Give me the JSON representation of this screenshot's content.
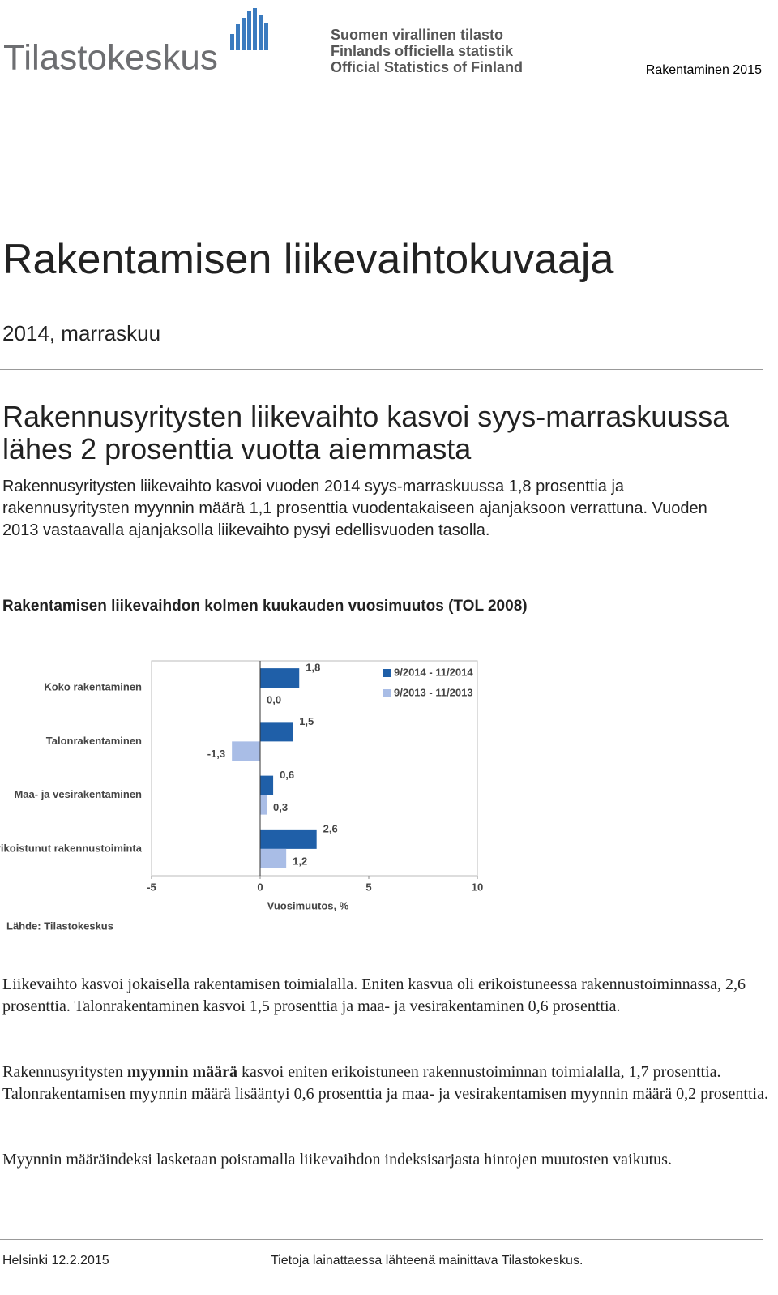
{
  "header": {
    "logo_text": "Tilastokeskus",
    "tagline": [
      "Suomen virallinen tilasto",
      "Finlands officiella statistik",
      "Official Statistics of Finland"
    ],
    "publication": "Rakentaminen 2015"
  },
  "title": "Rakentamisen liikevaihtokuvaaja",
  "subtitle": "2014, marraskuu",
  "headline": "Rakennusyritysten liikevaihto kasvoi syys-marraskuussa lähes 2 prosenttia vuotta aiemmasta",
  "lead": "Rakennusyritysten liikevaihto kasvoi vuoden 2014 syys-marraskuussa 1,8 prosenttia ja rakennusyritysten myynnin määrä 1,1 prosenttia vuodentakaiseen ajanjaksoon verrattuna. Vuoden 2013 vastaavalla ajanjaksolla liikevaihto pysyi edellisvuoden tasolla.",
  "chart_heading": "Rakentamisen liikevaihdon kolmen kuukauden vuosimuutos (TOL 2008)",
  "chart_data": {
    "type": "bar",
    "orientation": "horizontal",
    "categories": [
      "Koko rakentaminen",
      "Talonrakentaminen",
      "Maa- ja vesirakentaminen",
      "Erikoistunut rakennustoiminta"
    ],
    "series": [
      {
        "name": "9/2014 - 11/2014",
        "color": "#1f5fa8",
        "values": [
          1.8,
          1.5,
          0.6,
          2.6
        ],
        "value_labels": [
          "1,8",
          "1,5",
          "0,6",
          "2,6"
        ]
      },
      {
        "name": "9/2013 - 11/2013",
        "color": "#a9bde6",
        "values": [
          0.0,
          -1.3,
          0.3,
          1.2
        ],
        "value_labels": [
          "0,0",
          "-1,3",
          "0,3",
          "1,2"
        ]
      }
    ],
    "xlim": [
      -5,
      10
    ],
    "xticks": [
      -5,
      0,
      5,
      10
    ],
    "xlabel": "Vuosimuutos, %",
    "grid": false,
    "legend": "top-right",
    "source": "Lähde: Tilastokeskus"
  },
  "paragraphs": [
    [
      "Liikevaihto kasvoi jokaisella rakentamisen toimialalla. Eniten kasvua oli erikoistuneessa rakennustoiminnassa, 2,6 prosenttia. Talonrakentaminen kasvoi 1,5 prosenttia ja maa- ja vesirakentaminen 0,6 prosenttia."
    ],
    [
      "Rakennusyritysten ",
      "myynnin määrä",
      " kasvoi eniten erikoistuneen rakennustoiminnan toimialalla, 1,7 prosenttia. Talonrakentamisen myynnin määrä lisääntyi 0,6 prosenttia ja maa- ja vesirakentamisen myynnin määrä 0,2 prosenttia."
    ],
    [
      "Myynnin määräindeksi lasketaan poistamalla liikevaihdon indeksisarjasta hintojen muutosten vaikutus."
    ]
  ],
  "footer": {
    "left": "Helsinki 12.2.2015",
    "right": "Tietoja lainattaessa lähteenä mainittava Tilastokeskus."
  }
}
